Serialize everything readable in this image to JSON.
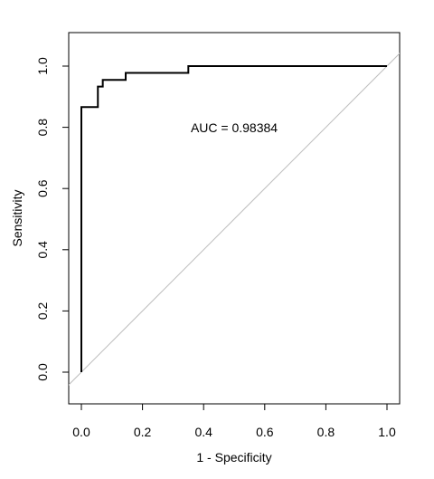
{
  "chart_data": {
    "type": "line",
    "xlabel": "1 - Specificity",
    "ylabel": "Sensitivity",
    "xlim": [
      0,
      1
    ],
    "ylim": [
      0,
      1
    ],
    "x_ticks": [
      "0.0",
      "0.2",
      "0.4",
      "0.6",
      "0.8",
      "1.0"
    ],
    "y_ticks": [
      "0.0",
      "0.2",
      "0.4",
      "0.6",
      "0.8",
      "1.0"
    ],
    "annotation": "AUC = 0.98384",
    "grid": false,
    "series": [
      {
        "x": [
          0,
          0,
          0.054,
          0.054,
          0.07,
          0.07,
          0.145,
          0.145,
          0.35,
          0.35,
          1.0
        ],
        "y": [
          0,
          0.866,
          0.866,
          0.933,
          0.933,
          0.955,
          0.955,
          0.978,
          0.978,
          1.0,
          1.0
        ],
        "color": "#000000"
      },
      {
        "x": [
          0,
          1
        ],
        "y": [
          0,
          1
        ],
        "color": "#bebebe"
      }
    ]
  }
}
